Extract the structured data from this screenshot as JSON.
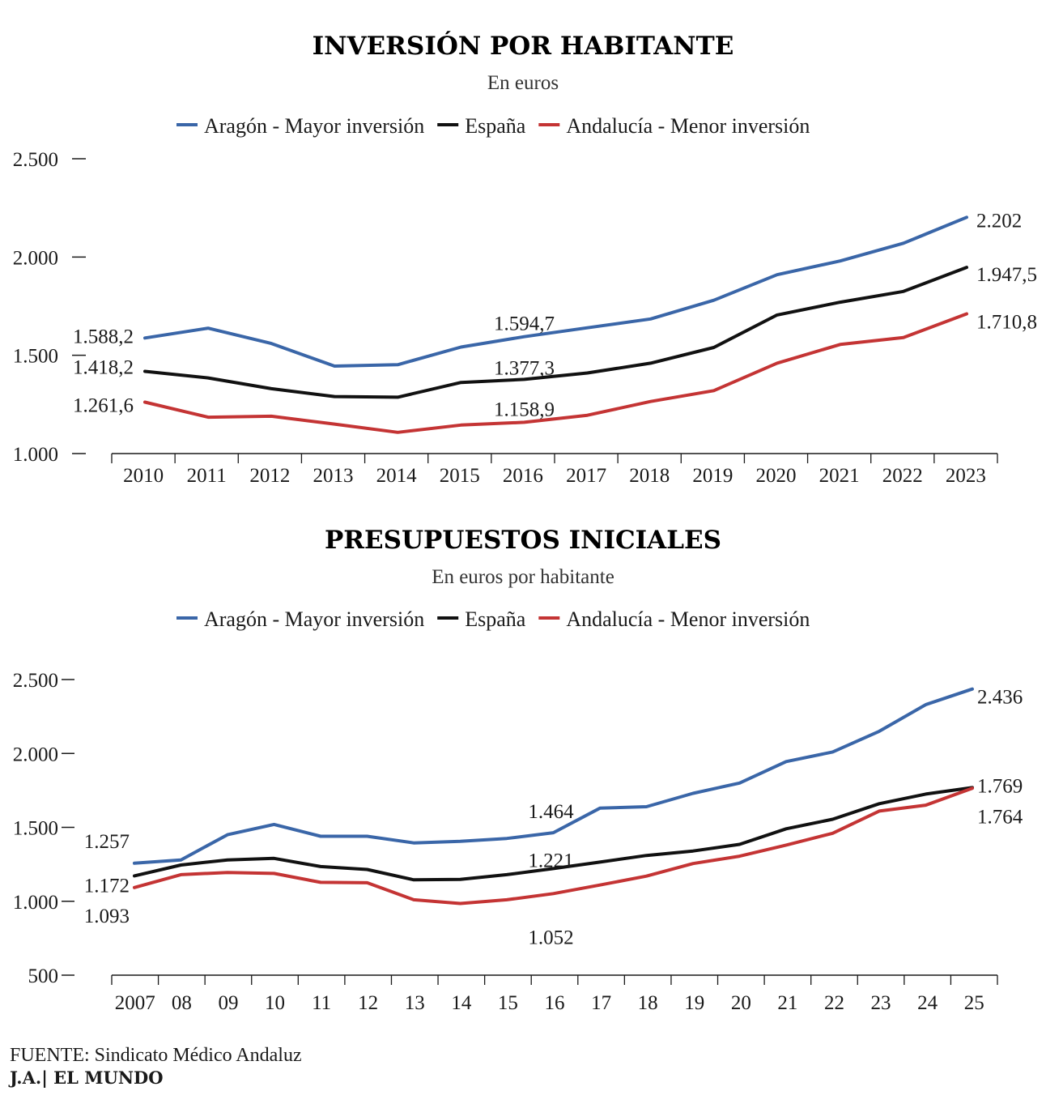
{
  "chart_data": [
    {
      "type": "line",
      "title": "INVERSIÓN POR HABITANTE",
      "subtitle": "En euros",
      "categories": [
        "2010",
        "2011",
        "2012",
        "2013",
        "2014",
        "2015",
        "2016",
        "2017",
        "2018",
        "2019",
        "2020",
        "2021",
        "2022",
        "2023"
      ],
      "ylim": [
        1000,
        2500
      ],
      "yticks": [
        "2.500",
        "2.000",
        "1.500",
        "1.000"
      ],
      "ytick_values": [
        2500,
        2000,
        1500,
        1000
      ],
      "legend_position": "top",
      "series": [
        {
          "name": "Aragón - Mayor inversión",
          "color": "#3a66a8",
          "values": [
            1588.2,
            1638,
            1560,
            1445,
            1452,
            1542,
            1594.7,
            1640,
            1685,
            1780,
            1910,
            1980,
            2070,
            2202
          ]
        },
        {
          "name": "España",
          "color": "#111111",
          "values": [
            1418.2,
            1385,
            1330,
            1290,
            1287,
            1362,
            1377.3,
            1410,
            1460,
            1540,
            1705,
            1770,
            1825,
            1947.5
          ]
        },
        {
          "name": "Andalucía - Menor inversión",
          "color": "#c43434",
          "values": [
            1261.6,
            1185,
            1190,
            1150,
            1108,
            1145,
            1158.9,
            1195,
            1265,
            1320,
            1460,
            1555,
            1590,
            1710.8
          ]
        }
      ],
      "annotations": [
        {
          "text": "1.588,2",
          "series": 0,
          "index": 0
        },
        {
          "text": "1.418,2",
          "series": 1,
          "index": 0
        },
        {
          "text": "1.261,6",
          "series": 2,
          "index": 0
        },
        {
          "text": "1.594,7",
          "series": 0,
          "index": 6
        },
        {
          "text": "1.377,3",
          "series": 1,
          "index": 6
        },
        {
          "text": "1.158,9",
          "series": 2,
          "index": 6
        },
        {
          "text": "2.202",
          "series": 0,
          "index": 13
        },
        {
          "text": "1.947,5",
          "series": 1,
          "index": 13
        },
        {
          "text": "1.710,8",
          "series": 2,
          "index": 13
        }
      ]
    },
    {
      "type": "line",
      "title": "PRESUPUESTOS INICIALES",
      "subtitle": "En euros por habitante",
      "categories": [
        "2007",
        "08",
        "09",
        "10",
        "11",
        "12",
        "13",
        "14",
        "15",
        "16",
        "17",
        "18",
        "19",
        "20",
        "21",
        "22",
        "23",
        "24",
        "25"
      ],
      "ylim": [
        500,
        2500
      ],
      "yticks": [
        "2.500",
        "2.000",
        "1.500",
        "1.000",
        "500"
      ],
      "ytick_values": [
        2500,
        2000,
        1500,
        1000,
        500
      ],
      "legend_position": "top",
      "series": [
        {
          "name": "Aragón - Mayor inversión",
          "color": "#3a66a8",
          "values": [
            1257,
            1280,
            1450,
            1520,
            1440,
            1440,
            1395,
            1405,
            1425,
            1464,
            1630,
            1640,
            1730,
            1800,
            1945,
            2010,
            2150,
            2330,
            2436
          ]
        },
        {
          "name": "España",
          "color": "#111111",
          "values": [
            1172,
            1245,
            1280,
            1290,
            1235,
            1215,
            1145,
            1148,
            1180,
            1221,
            1265,
            1310,
            1340,
            1385,
            1490,
            1555,
            1660,
            1725,
            1769
          ]
        },
        {
          "name": "Andalucía - Menor inversión",
          "color": "#c43434",
          "values": [
            1093,
            1180,
            1195,
            1188,
            1128,
            1125,
            1010,
            985,
            1010,
            1052,
            1110,
            1170,
            1255,
            1305,
            1380,
            1460,
            1610,
            1650,
            1764
          ]
        }
      ],
      "annotations": [
        {
          "text": "1.257",
          "series": 0,
          "index": 0
        },
        {
          "text": "1.172",
          "series": 1,
          "index": 0
        },
        {
          "text": "1.093",
          "series": 2,
          "index": 0
        },
        {
          "text": "1.464",
          "series": 0,
          "index": 9
        },
        {
          "text": "1.221",
          "series": 1,
          "index": 9
        },
        {
          "text": "1.052",
          "series": 2,
          "index": 9
        },
        {
          "text": "2.436",
          "series": 0,
          "index": 18
        },
        {
          "text": "1.769",
          "series": 1,
          "index": 18
        },
        {
          "text": "1.764",
          "series": 2,
          "index": 18
        }
      ]
    }
  ],
  "footer": {
    "source": "FUENTE: Sindicato Médico Andaluz",
    "credit": "J.A.| EL MUNDO"
  }
}
